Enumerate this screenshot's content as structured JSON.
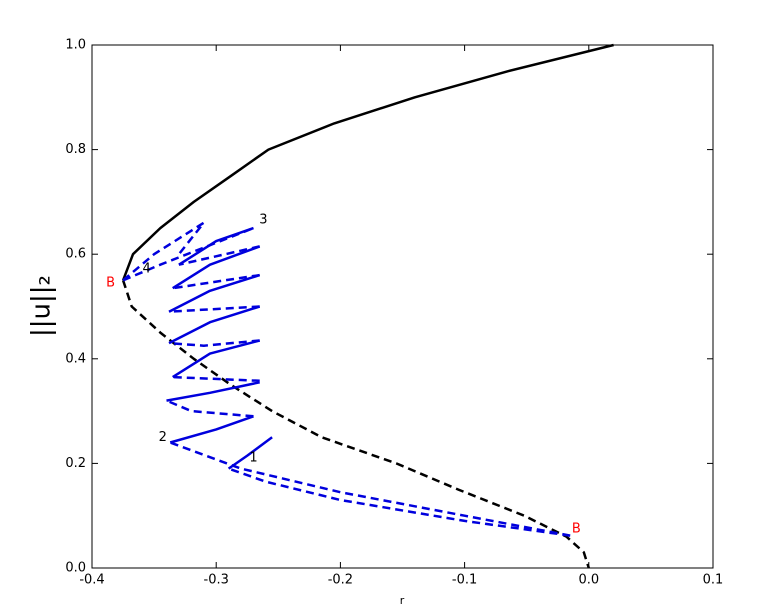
{
  "chart_data": {
    "type": "line",
    "xlabel": "r",
    "ylabel": "||u||₂",
    "xlim": [
      -0.4,
      0.1
    ],
    "ylim": [
      0,
      1
    ],
    "xticks": [
      -0.4,
      -0.3,
      -0.2,
      -0.1,
      {
        "value": 0,
        "label": "0.0"
      },
      0.1
    ],
    "yticks": [
      {
        "value": 0,
        "label": "0.0"
      },
      0.2,
      0.4,
      0.6,
      0.8,
      {
        "value": 1,
        "label": "1.0"
      }
    ],
    "series": [
      {
        "color": "#000000",
        "dash": false,
        "x": [
          -0.375,
          -0.367,
          -0.345,
          -0.318,
          -0.288,
          -0.258,
          -0.205,
          -0.14,
          -0.065,
          0.02
        ],
        "values": [
          0.55,
          0.6,
          0.65,
          0.7,
          0.75,
          0.8,
          0.85,
          0.9,
          0.95,
          1.0
        ]
      },
      {
        "color": "#000000",
        "dash": true,
        "x": [
          -0.375,
          -0.368,
          -0.345,
          -0.318,
          -0.288,
          -0.255,
          -0.215,
          -0.155,
          -0.105,
          -0.052,
          -0.018,
          -0.004,
          0
        ],
        "values": [
          0.55,
          0.5,
          0.45,
          0.4,
          0.35,
          0.3,
          0.25,
          0.2,
          0.15,
          0.1,
          0.06,
          0.03,
          0
        ]
      },
      {
        "color": "#0000dd",
        "dash": false,
        "x": [
          -0.29,
          -0.275,
          -0.255,
          null,
          -0.337,
          -0.3,
          -0.27,
          null,
          -0.34,
          -0.305,
          -0.265,
          null,
          -0.335,
          -0.305,
          -0.265,
          null,
          -0.338,
          -0.305,
          -0.265,
          null,
          -0.338,
          -0.305,
          -0.265,
          null,
          -0.335,
          -0.305,
          -0.265,
          null,
          -0.33,
          -0.3,
          -0.27
        ],
        "values": [
          0.19,
          0.215,
          0.25,
          null,
          0.24,
          0.265,
          0.29,
          null,
          0.32,
          0.335,
          0.355,
          null,
          0.365,
          0.41,
          0.435,
          null,
          0.43,
          0.47,
          0.5,
          null,
          0.49,
          0.53,
          0.56,
          null,
          0.535,
          0.58,
          0.615,
          null,
          0.58,
          0.625,
          0.65
        ]
      },
      {
        "color": "#0000dd",
        "dash": true,
        "x": [
          -0.015,
          -0.1,
          -0.2,
          -0.26,
          -0.29,
          null,
          -0.015,
          -0.1,
          -0.2,
          -0.28,
          -0.337,
          null,
          -0.27,
          -0.32,
          -0.34,
          null,
          -0.265,
          -0.335,
          null,
          -0.265,
          -0.31,
          -0.338,
          null,
          -0.265,
          -0.338,
          null,
          -0.265,
          -0.335,
          null,
          -0.265,
          -0.33,
          null,
          -0.375,
          -0.35,
          -0.31,
          -0.33,
          null,
          -0.375,
          -0.345,
          -0.27
        ],
        "values": [
          0.062,
          0.09,
          0.13,
          0.165,
          0.19,
          null,
          0.062,
          0.1,
          0.145,
          0.19,
          0.24,
          null,
          0.29,
          0.3,
          0.32,
          null,
          0.358,
          0.365,
          null,
          0.435,
          0.425,
          0.43,
          null,
          0.5,
          0.49,
          null,
          0.56,
          0.535,
          null,
          0.615,
          0.58,
          null,
          0.55,
          0.6,
          0.66,
          0.6,
          null,
          0.55,
          0.58,
          0.65
        ]
      }
    ],
    "annotations": [
      {
        "text": "B",
        "x": -0.385,
        "y": 0.545,
        "color": "#ff0000"
      },
      {
        "text": "B",
        "x": -0.01,
        "y": 0.075,
        "color": "#ff0000"
      },
      {
        "text": "1",
        "x": -0.27,
        "y": 0.21,
        "color": "#000000"
      },
      {
        "text": "2",
        "x": -0.343,
        "y": 0.25,
        "color": "#000000"
      },
      {
        "text": "3",
        "x": -0.262,
        "y": 0.665,
        "color": "#000000"
      },
      {
        "text": "4",
        "x": -0.356,
        "y": 0.572,
        "color": "#000000"
      }
    ]
  }
}
